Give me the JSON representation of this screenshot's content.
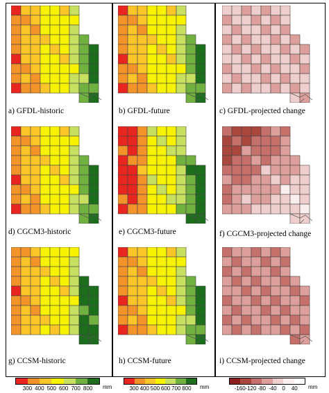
{
  "panels": [
    {
      "id": "a",
      "caption": "a)  GFDL-historic",
      "scale": "precip",
      "pattern": "gradient_east_wet"
    },
    {
      "id": "b",
      "caption": "b)  GFDL-future",
      "scale": "precip",
      "pattern": "gradient_east_wet"
    },
    {
      "id": "c",
      "caption": "c)  GFDL-projected change",
      "scale": "change",
      "pattern": "light_uniform"
    },
    {
      "id": "d",
      "caption": "d)  CGCM3-historic",
      "scale": "precip",
      "pattern": "gradient_east_wet"
    },
    {
      "id": "e",
      "caption": "e)  CGCM3-future",
      "scale": "precip",
      "pattern": "gradient_west_dry"
    },
    {
      "id": "f",
      "caption": "f)  CGCM3-projected change",
      "scale": "change",
      "pattern": "strong_northwest"
    },
    {
      "id": "g",
      "caption": "g)  CCSM-historic",
      "scale": "precip",
      "pattern": "gradient_mixed"
    },
    {
      "id": "h",
      "caption": "h)  CCSM-future",
      "scale": "precip",
      "pattern": "gradient_east_wet"
    },
    {
      "id": "i",
      "caption": "i)   CCSM-projected change",
      "scale": "change",
      "pattern": "strong_uniform"
    }
  ],
  "legends": [
    {
      "id": "precip-legend",
      "colors": [
        "#e8261f",
        "#f3942a",
        "#fac528",
        "#f7f200",
        "#c7e05f",
        "#71b13f",
        "#1c6e1c"
      ],
      "labels": [
        "300",
        "400",
        "500",
        "600",
        "700",
        "800"
      ],
      "unit": "mm"
    },
    {
      "id": "precip-legend-2",
      "colors": [
        "#e8261f",
        "#f3942a",
        "#fac528",
        "#f7f200",
        "#c7e05f",
        "#71b13f",
        "#1c6e1c"
      ],
      "labels": [
        "300",
        "400",
        "500",
        "600",
        "700",
        "800"
      ],
      "unit": "mm"
    },
    {
      "id": "change-legend",
      "colors": [
        "#8b1d1d",
        "#a9473f",
        "#c5706a",
        "#dc9f9b",
        "#efcfcd",
        "#fbeeee",
        "#ffffff"
      ],
      "labels": [
        "-160",
        "-120",
        "-80",
        "-40",
        "0",
        "40"
      ],
      "unit": "mm"
    }
  ]
}
